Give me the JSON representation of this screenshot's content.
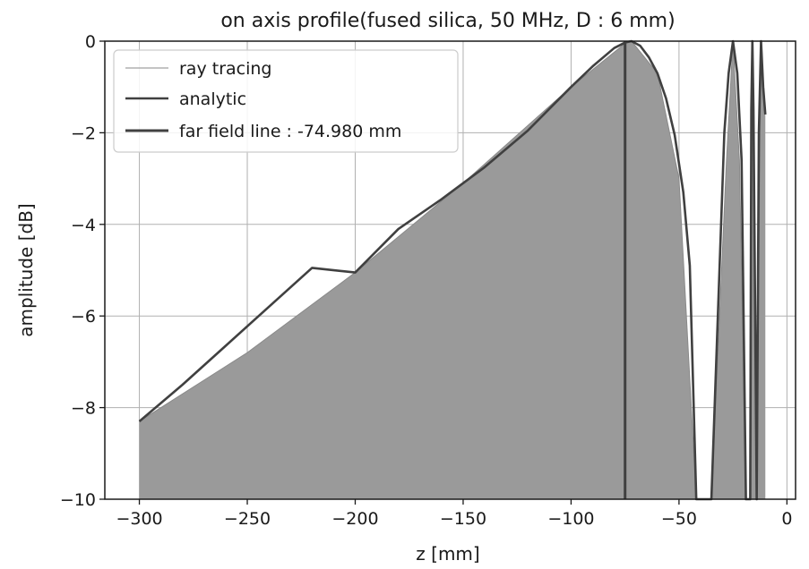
{
  "chart_data": {
    "type": "line",
    "title": "on axis profile(fused silica, 50 MHz, D : 6 mm)",
    "xlabel": "z [mm]",
    "ylabel": "amplitude [dB]",
    "xlim": [
      -316,
      4
    ],
    "ylim": [
      -10,
      0
    ],
    "x_ticks": [
      -300,
      -250,
      -200,
      -150,
      -100,
      -50,
      0
    ],
    "x_tick_labels": [
      "−300",
      "−250",
      "−200",
      "−150",
      "−100",
      "−50",
      "0"
    ],
    "y_ticks": [
      0,
      -2,
      -4,
      -6,
      -8,
      -10
    ],
    "y_tick_labels": [
      "0",
      "−2",
      "−4",
      "−6",
      "−8",
      "−10"
    ],
    "grid": true,
    "legend_position": "top-left",
    "far_field_z": -74.98,
    "series": [
      {
        "name": "ray tracing",
        "style": "thin-line-filled",
        "color": "#999999",
        "x": [
          -300,
          -250,
          -200,
          -150,
          -100,
          -75,
          -72,
          -60,
          -50,
          -42,
          -35,
          -28,
          -25,
          -22,
          -19,
          -17,
          -16,
          -14,
          -12,
          -10
        ],
        "y": [
          -8.3,
          -6.8,
          -5.05,
          -3.1,
          -1.0,
          -0.05,
          0.0,
          -0.7,
          -3.0,
          -10.0,
          -10.0,
          -2.6,
          0.0,
          -2.6,
          -10.0,
          -10.0,
          0.0,
          -10.0,
          0.0,
          -1.6
        ]
      },
      {
        "name": "analytic",
        "style": "line",
        "color": "#404040",
        "x": [
          -300,
          -280,
          -260,
          -240,
          -220,
          -200,
          -180,
          -160,
          -140,
          -120,
          -100,
          -90,
          -80,
          -75,
          -72,
          -68,
          -64,
          -60,
          -56,
          -52,
          -48,
          -45,
          -42,
          -35,
          -32,
          -29,
          -27,
          -25,
          -23,
          -21,
          -19,
          -17,
          -16.5,
          -16,
          -15.5,
          -14,
          -13,
          -12,
          -11,
          -10
        ],
        "y": [
          -8.3,
          -7.5,
          -6.65,
          -5.8,
          -4.95,
          -5.05,
          -4.1,
          -3.45,
          -2.75,
          -1.95,
          -1.0,
          -0.55,
          -0.15,
          -0.03,
          0.0,
          -0.1,
          -0.35,
          -0.7,
          -1.25,
          -2.05,
          -3.3,
          -4.9,
          -10.0,
          -10.0,
          -6.0,
          -2.0,
          -0.7,
          0.0,
          -0.7,
          -2.6,
          -10.0,
          -10.0,
          -1.5,
          0.0,
          -1.5,
          -10.0,
          -2.0,
          0.0,
          -1.0,
          -1.6
        ]
      },
      {
        "name": "far field line : -74.980 mm",
        "style": "vertical-line",
        "color": "#404040",
        "x": [
          -74.98,
          -74.98
        ],
        "y": [
          -10,
          0
        ]
      }
    ]
  }
}
